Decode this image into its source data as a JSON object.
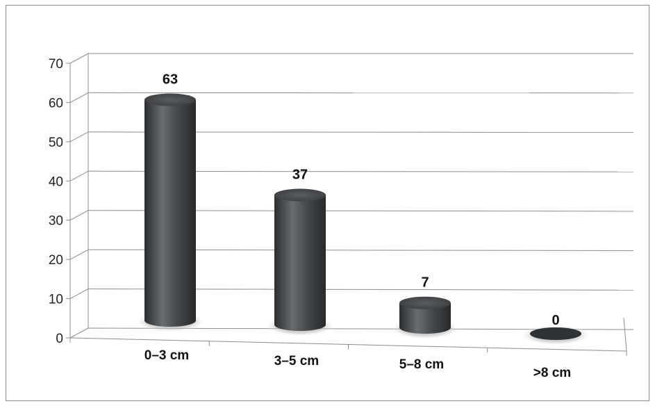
{
  "chart_data": {
    "type": "bar",
    "style": "3d-cylinder",
    "title": "",
    "xlabel": "",
    "ylabel": "",
    "categories": [
      "0–3 cm",
      "3–5 cm",
      "5–8 cm",
      ">8 cm"
    ],
    "values": [
      63,
      37,
      7,
      0
    ],
    "data_labels": [
      "63",
      "37",
      "7",
      "0"
    ],
    "ylim": [
      0,
      70
    ],
    "yticks": [
      0,
      10,
      20,
      30,
      40,
      50,
      60,
      70
    ],
    "ytick_labels": [
      "0",
      "10",
      "20",
      "30",
      "40",
      "50",
      "60",
      "70"
    ],
    "grid": true,
    "legend": "none",
    "colors": {
      "bar": "#3f4245",
      "bar_highlight": "#6c6f72",
      "bar_shadow": "#262829",
      "zero_bar": "#2e3336",
      "grid": "#8c8c8c",
      "text": "#111111"
    }
  }
}
